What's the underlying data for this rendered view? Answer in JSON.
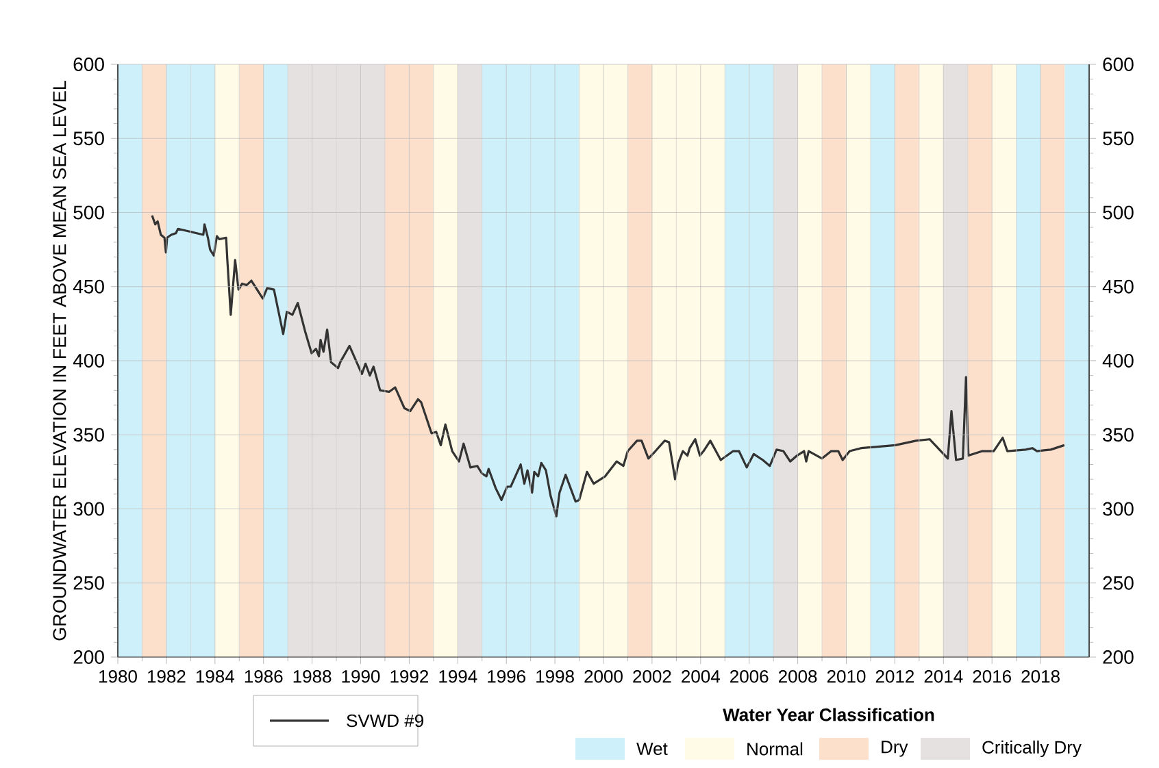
{
  "chart_data": {
    "type": "line",
    "ylabel": "GROUNDWATER ELEVATION IN FEET ABOVE MEAN SEA LEVEL",
    "legend_title": "Water Year Classification",
    "xlim": [
      1980,
      2020
    ],
    "xticks": [
      1980,
      1982,
      1984,
      1986,
      1988,
      1990,
      1992,
      1994,
      1996,
      1998,
      2000,
      2002,
      2004,
      2006,
      2008,
      2010,
      2012,
      2014,
      2016,
      2018
    ],
    "ylim": [
      200,
      600
    ],
    "yticks": [
      200,
      250,
      300,
      350,
      400,
      450,
      500,
      550,
      600
    ],
    "y2lim": [
      200,
      600
    ],
    "y2ticks": [
      200,
      250,
      300,
      350,
      400,
      450,
      500,
      550,
      600
    ],
    "grid": true,
    "legend": "bottom",
    "series": [
      {
        "name": "SVWD #9",
        "color": "#333333",
        "x": [
          1981.41,
          1981.54,
          1981.64,
          1981.77,
          1981.92,
          1981.98,
          1982.03,
          1982.2,
          1982.39,
          1982.48,
          1983.52,
          1983.57,
          1983.71,
          1983.8,
          1983.95,
          1984.08,
          1984.18,
          1984.46,
          1984.51,
          1984.65,
          1984.83,
          1984.97,
          1985.12,
          1985.3,
          1985.5,
          1985.97,
          1986.15,
          1986.43,
          1986.81,
          1986.96,
          1987.19,
          1987.41,
          1987.71,
          1987.98,
          1988.16,
          1988.28,
          1988.35,
          1988.47,
          1988.62,
          1988.78,
          1989.07,
          1989.16,
          1989.54,
          1990.05,
          1990.2,
          1990.38,
          1990.53,
          1990.8,
          1991.17,
          1991.42,
          1991.8,
          1992.04,
          1992.36,
          1992.49,
          1992.92,
          1993.11,
          1993.3,
          1993.49,
          1993.77,
          1994.05,
          1994.24,
          1994.52,
          1994.8,
          1994.99,
          1995.18,
          1995.27,
          1995.56,
          1995.8,
          1996.03,
          1996.18,
          1996.59,
          1996.74,
          1996.87,
          1997.06,
          1997.15,
          1997.31,
          1997.44,
          1997.63,
          1997.82,
          1998.06,
          1998.19,
          1998.44,
          1998.85,
          1999.0,
          1999.32,
          1999.6,
          2000.07,
          2000.54,
          2000.82,
          2001.0,
          2001.38,
          2001.57,
          2001.85,
          2002.14,
          2002.52,
          2002.7,
          2002.95,
          2003.08,
          2003.27,
          2003.46,
          2003.55,
          2003.78,
          2003.97,
          2004.12,
          2004.4,
          2004.83,
          2005.34,
          2005.58,
          2005.9,
          2006.19,
          2006.56,
          2006.85,
          2007.13,
          2007.41,
          2007.69,
          2007.97,
          2008.26,
          2008.35,
          2008.45,
          2009.0,
          2009.38,
          2009.67,
          2009.85,
          2010.14,
          2010.61,
          2012.02,
          2012.87,
          2013.43,
          2014.18,
          2014.33,
          2014.52,
          2014.8,
          2014.93,
          2015.03,
          2015.6,
          2016.07,
          2016.44,
          2016.63,
          2017.39,
          2017.66,
          2017.85,
          2018.42,
          2018.98
        ],
        "values": [
          498,
          492,
          494,
          485,
          483,
          473,
          483,
          485,
          486,
          489,
          485,
          492,
          483,
          475,
          471,
          484,
          482,
          483,
          468,
          431,
          468,
          448,
          452,
          451,
          454,
          442,
          449,
          448,
          418,
          433,
          431,
          439,
          420,
          405,
          408,
          403,
          414,
          406,
          421,
          399,
          395,
          399,
          410,
          391,
          398,
          390,
          396,
          380,
          379,
          382,
          368,
          366,
          374,
          372,
          351,
          352,
          343,
          357,
          339,
          332,
          344,
          328,
          329,
          324,
          322,
          327,
          314,
          306,
          315,
          315,
          330,
          317,
          326,
          311,
          325,
          322,
          331,
          326,
          309,
          295,
          311,
          323,
          305,
          306,
          325,
          317,
          322,
          332,
          329,
          339,
          346,
          346,
          334,
          339,
          346,
          345,
          320,
          331,
          339,
          336,
          341,
          347,
          336,
          339,
          346,
          333,
          339,
          339,
          328,
          337,
          333,
          329,
          340,
          339,
          332,
          336,
          339,
          332,
          339,
          334,
          339,
          339,
          333,
          339,
          341,
          343,
          346,
          347,
          334,
          366,
          333,
          334,
          389,
          336,
          339,
          339,
          348,
          339,
          340,
          341,
          339,
          340,
          343
        ]
      }
    ],
    "bands": [
      {
        "axis": "x",
        "from": 1980,
        "to": 1981,
        "color": "#cdf0fb",
        "label": "Wet"
      },
      {
        "axis": "x",
        "from": 1981,
        "to": 1982,
        "color": "#fde0cc"
      },
      {
        "axis": "x",
        "from": 1982,
        "to": 1983,
        "color": "#cdf0fb"
      },
      {
        "axis": "x",
        "from": 1983,
        "to": 1984,
        "color": "#cdf0fb"
      },
      {
        "axis": "x",
        "from": 1984,
        "to": 1985,
        "color": "#fffbe6",
        "label": "Normal"
      },
      {
        "axis": "x",
        "from": 1985,
        "to": 1986,
        "color": "#fde0cc",
        "label": "Dry"
      },
      {
        "axis": "x",
        "from": 1986,
        "to": 1987,
        "color": "#cdf0fb"
      },
      {
        "axis": "x",
        "from": 1987,
        "to": 1988,
        "color": "#e6e1e1",
        "label": "Critically Dry"
      },
      {
        "axis": "x",
        "from": 1988,
        "to": 1989,
        "color": "#e6e1e1"
      },
      {
        "axis": "x",
        "from": 1989,
        "to": 1990,
        "color": "#e6e1e1"
      },
      {
        "axis": "x",
        "from": 1990,
        "to": 1991,
        "color": "#e6e1e1"
      },
      {
        "axis": "x",
        "from": 1991,
        "to": 1992,
        "color": "#fde0cc"
      },
      {
        "axis": "x",
        "from": 1992,
        "to": 1993,
        "color": "#fde0cc"
      },
      {
        "axis": "x",
        "from": 1993,
        "to": 1994,
        "color": "#fffbe6"
      },
      {
        "axis": "x",
        "from": 1994,
        "to": 1995,
        "color": "#e6e1e1"
      },
      {
        "axis": "x",
        "from": 1995,
        "to": 1996,
        "color": "#cdf0fb"
      },
      {
        "axis": "x",
        "from": 1996,
        "to": 1997,
        "color": "#cdf0fb"
      },
      {
        "axis": "x",
        "from": 1997,
        "to": 1998,
        "color": "#cdf0fb"
      },
      {
        "axis": "x",
        "from": 1998,
        "to": 1999,
        "color": "#cdf0fb"
      },
      {
        "axis": "x",
        "from": 1999,
        "to": 2000,
        "color": "#fffbe6"
      },
      {
        "axis": "x",
        "from": 2000,
        "to": 2001,
        "color": "#fffbe6"
      },
      {
        "axis": "x",
        "from": 2001,
        "to": 2002,
        "color": "#fde0cc"
      },
      {
        "axis": "x",
        "from": 2002,
        "to": 2003,
        "color": "#fffbe6"
      },
      {
        "axis": "x",
        "from": 2003,
        "to": 2004,
        "color": "#fffbe6"
      },
      {
        "axis": "x",
        "from": 2004,
        "to": 2005,
        "color": "#fffbe6"
      },
      {
        "axis": "x",
        "from": 2005,
        "to": 2006,
        "color": "#cdf0fb"
      },
      {
        "axis": "x",
        "from": 2006,
        "to": 2007,
        "color": "#cdf0fb"
      },
      {
        "axis": "x",
        "from": 2007,
        "to": 2008,
        "color": "#e6e1e1"
      },
      {
        "axis": "x",
        "from": 2008,
        "to": 2009,
        "color": "#fffbe6"
      },
      {
        "axis": "x",
        "from": 2009,
        "to": 2010,
        "color": "#fde0cc"
      },
      {
        "axis": "x",
        "from": 2010,
        "to": 2011,
        "color": "#fffbe6"
      },
      {
        "axis": "x",
        "from": 2011,
        "to": 2012,
        "color": "#cdf0fb"
      },
      {
        "axis": "x",
        "from": 2012,
        "to": 2013,
        "color": "#fde0cc"
      },
      {
        "axis": "x",
        "from": 2013,
        "to": 2014,
        "color": "#fffbe6"
      },
      {
        "axis": "x",
        "from": 2014,
        "to": 2015,
        "color": "#e6e1e1"
      },
      {
        "axis": "x",
        "from": 2015,
        "to": 2016,
        "color": "#fde0cc"
      },
      {
        "axis": "x",
        "from": 2016,
        "to": 2017,
        "color": "#fffbe6"
      },
      {
        "axis": "x",
        "from": 2017,
        "to": 2018,
        "color": "#cdf0fb"
      },
      {
        "axis": "x",
        "from": 2018,
        "to": 2019,
        "color": "#fde0cc"
      },
      {
        "axis": "x",
        "from": 2019,
        "to": 2020,
        "color": "#cdf0fb"
      }
    ]
  }
}
